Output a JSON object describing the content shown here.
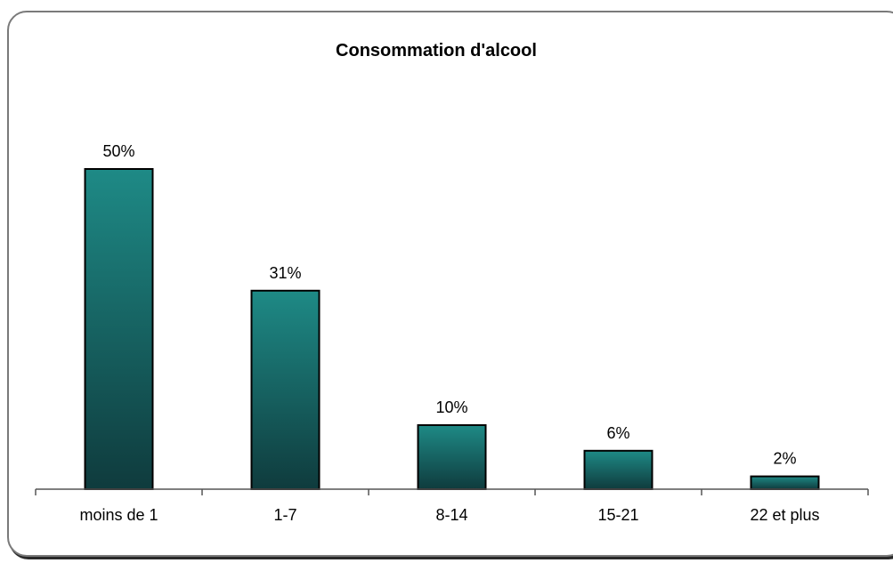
{
  "chart_data": {
    "type": "bar",
    "title": "Consommation d'alcool",
    "categories": [
      "moins de 1",
      "1-7",
      "8-14",
      "15-21",
      "22 et plus"
    ],
    "values": [
      50,
      31,
      10,
      6,
      2
    ],
    "data_labels": [
      "50%",
      "31%",
      "10%",
      "6%",
      "2%"
    ],
    "xlabel": "",
    "ylabel": "",
    "ylim": [
      0,
      50
    ],
    "grid": false,
    "legend": "none",
    "colors": {
      "bar_top": "#1e8a86",
      "bar_bottom": "#0f3b3d",
      "bar_border": "#000000",
      "axis": "#555555"
    }
  }
}
